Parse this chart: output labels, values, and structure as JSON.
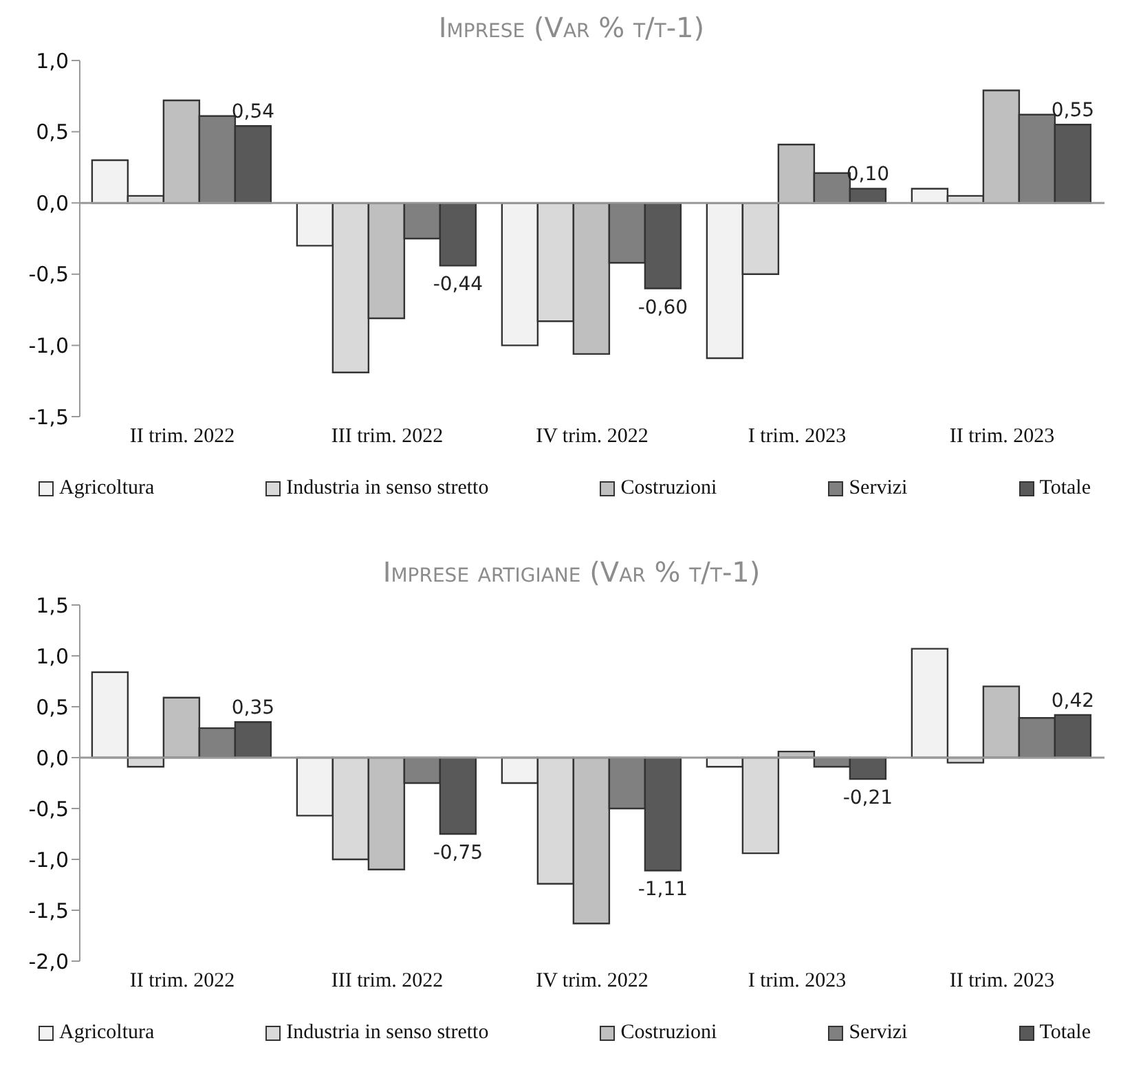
{
  "chart_data": [
    {
      "type": "bar",
      "title": "Imprese (Var % t/t-1)",
      "categories": [
        "II trim. 2022",
        "III trim. 2022",
        "IV trim. 2022",
        "I trim. 2023",
        "II trim. 2023"
      ],
      "ylim": [
        -1.5,
        1
      ],
      "yticks": [
        {
          "value": -1.5,
          "label": "-1,5"
        },
        {
          "value": -1,
          "label": "-1,0"
        },
        {
          "value": -0.5,
          "label": "-0,5"
        },
        {
          "value": 0,
          "label": "0,0"
        },
        {
          "value": 0.5,
          "label": "0,5"
        },
        {
          "value": 1,
          "label": "1,0"
        }
      ],
      "legend": "bottom",
      "series": [
        {
          "name": "Agricoltura",
          "color": "#f2f2f2",
          "values": [
            0.3,
            -0.3,
            -1.0,
            -1.09,
            0.1
          ]
        },
        {
          "name": "Industria in senso stretto",
          "color": "#d9d9d9",
          "values": [
            0.05,
            -1.19,
            -0.83,
            -0.5,
            0.05
          ]
        },
        {
          "name": "Costruzioni",
          "color": "#bfbfbf",
          "values": [
            0.72,
            -0.81,
            -1.06,
            0.41,
            0.79
          ]
        },
        {
          "name": "Servizi",
          "color": "#808080",
          "values": [
            0.61,
            -0.25,
            -0.42,
            0.21,
            0.62
          ]
        },
        {
          "name": "Totale",
          "color": "#595959",
          "values": [
            0.54,
            -0.44,
            -0.6,
            0.1,
            0.55
          ],
          "value_labels": [
            "0,54",
            "-0,44",
            "-0,60",
            "0,10",
            "0,55"
          ]
        }
      ]
    },
    {
      "type": "bar",
      "title": "Imprese artigiane (Var % t/t-1)",
      "categories": [
        "II trim. 2022",
        "III trim. 2022",
        "IV trim. 2022",
        "I trim. 2023",
        "II trim. 2023"
      ],
      "ylim": [
        -2,
        1.5
      ],
      "yticks": [
        {
          "value": -2,
          "label": "-2,0"
        },
        {
          "value": -1.5,
          "label": "-1,5"
        },
        {
          "value": -1,
          "label": "-1,0"
        },
        {
          "value": -0.5,
          "label": "-0,5"
        },
        {
          "value": 0,
          "label": "0,0"
        },
        {
          "value": 0.5,
          "label": "0,5"
        },
        {
          "value": 1,
          "label": "1,0"
        },
        {
          "value": 1.5,
          "label": "1,5"
        }
      ],
      "legend": "bottom",
      "series": [
        {
          "name": "Agricoltura",
          "color": "#f2f2f2",
          "values": [
            0.84,
            -0.57,
            -0.25,
            -0.09,
            1.07
          ]
        },
        {
          "name": "Industria in senso stretto",
          "color": "#d9d9d9",
          "values": [
            -0.09,
            -1.0,
            -1.24,
            -0.94,
            -0.05
          ]
        },
        {
          "name": "Costruzioni",
          "color": "#bfbfbf",
          "values": [
            0.59,
            -1.1,
            -1.63,
            0.06,
            0.7
          ]
        },
        {
          "name": "Servizi",
          "color": "#808080",
          "values": [
            0.29,
            -0.25,
            -0.5,
            -0.09,
            0.39
          ]
        },
        {
          "name": "Totale",
          "color": "#595959",
          "values": [
            0.35,
            -0.75,
            -1.11,
            -0.21,
            0.42
          ],
          "value_labels": [
            "0,35",
            "-0,75",
            "-1,11",
            "-0,21",
            "0,42"
          ]
        }
      ]
    }
  ]
}
